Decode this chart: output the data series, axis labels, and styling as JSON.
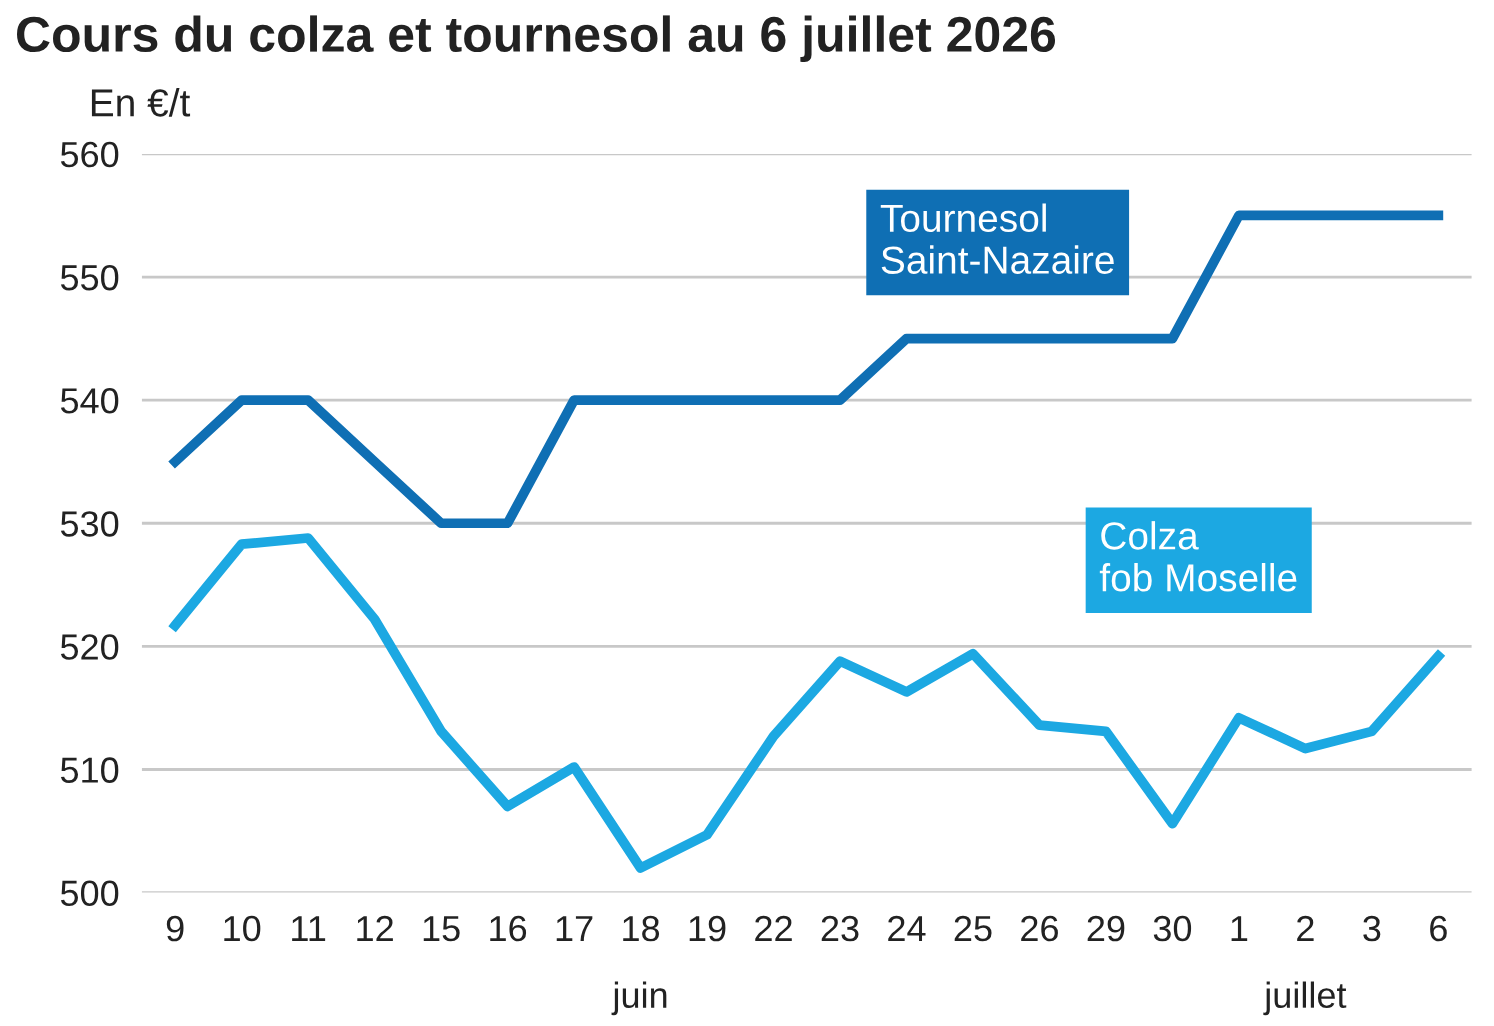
{
  "chart_data": {
    "type": "line",
    "title": "Cours du colza et tournesol au 6 juillet 2026",
    "ylabel": "En €/t",
    "categories": [
      "9",
      "10",
      "11",
      "12",
      "15",
      "16",
      "17",
      "18",
      "19",
      "22",
      "23",
      "24",
      "25",
      "26",
      "29",
      "30",
      "1",
      "2",
      "3",
      "6"
    ],
    "series": [
      {
        "name": "Tournesol\nSaint-Nazaire",
        "color": "#0f6fb4",
        "values": [
          535,
          540,
          540,
          535,
          530,
          530,
          540,
          540,
          540,
          540,
          540,
          545,
          545,
          545,
          545,
          545,
          555,
          555,
          555,
          555
        ]
      },
      {
        "name": "Colza\nfob Moselle",
        "color": "#1ca8e2",
        "values": [
          521.7,
          528.3,
          528.8,
          522.2,
          513.1,
          507,
          510.2,
          502,
          504.7,
          512.7,
          518.8,
          516.3,
          519.4,
          513.6,
          513.1,
          505.6,
          514.2,
          511.7,
          513.1,
          519.2
        ]
      }
    ],
    "ylim": [
      500,
      560
    ],
    "yticks": [
      500,
      510,
      520,
      530,
      540,
      550,
      560
    ],
    "grid": "y",
    "legend": false,
    "marker": "none",
    "line_style": "solid",
    "annotations": [
      "juin",
      "juillet"
    ]
  }
}
